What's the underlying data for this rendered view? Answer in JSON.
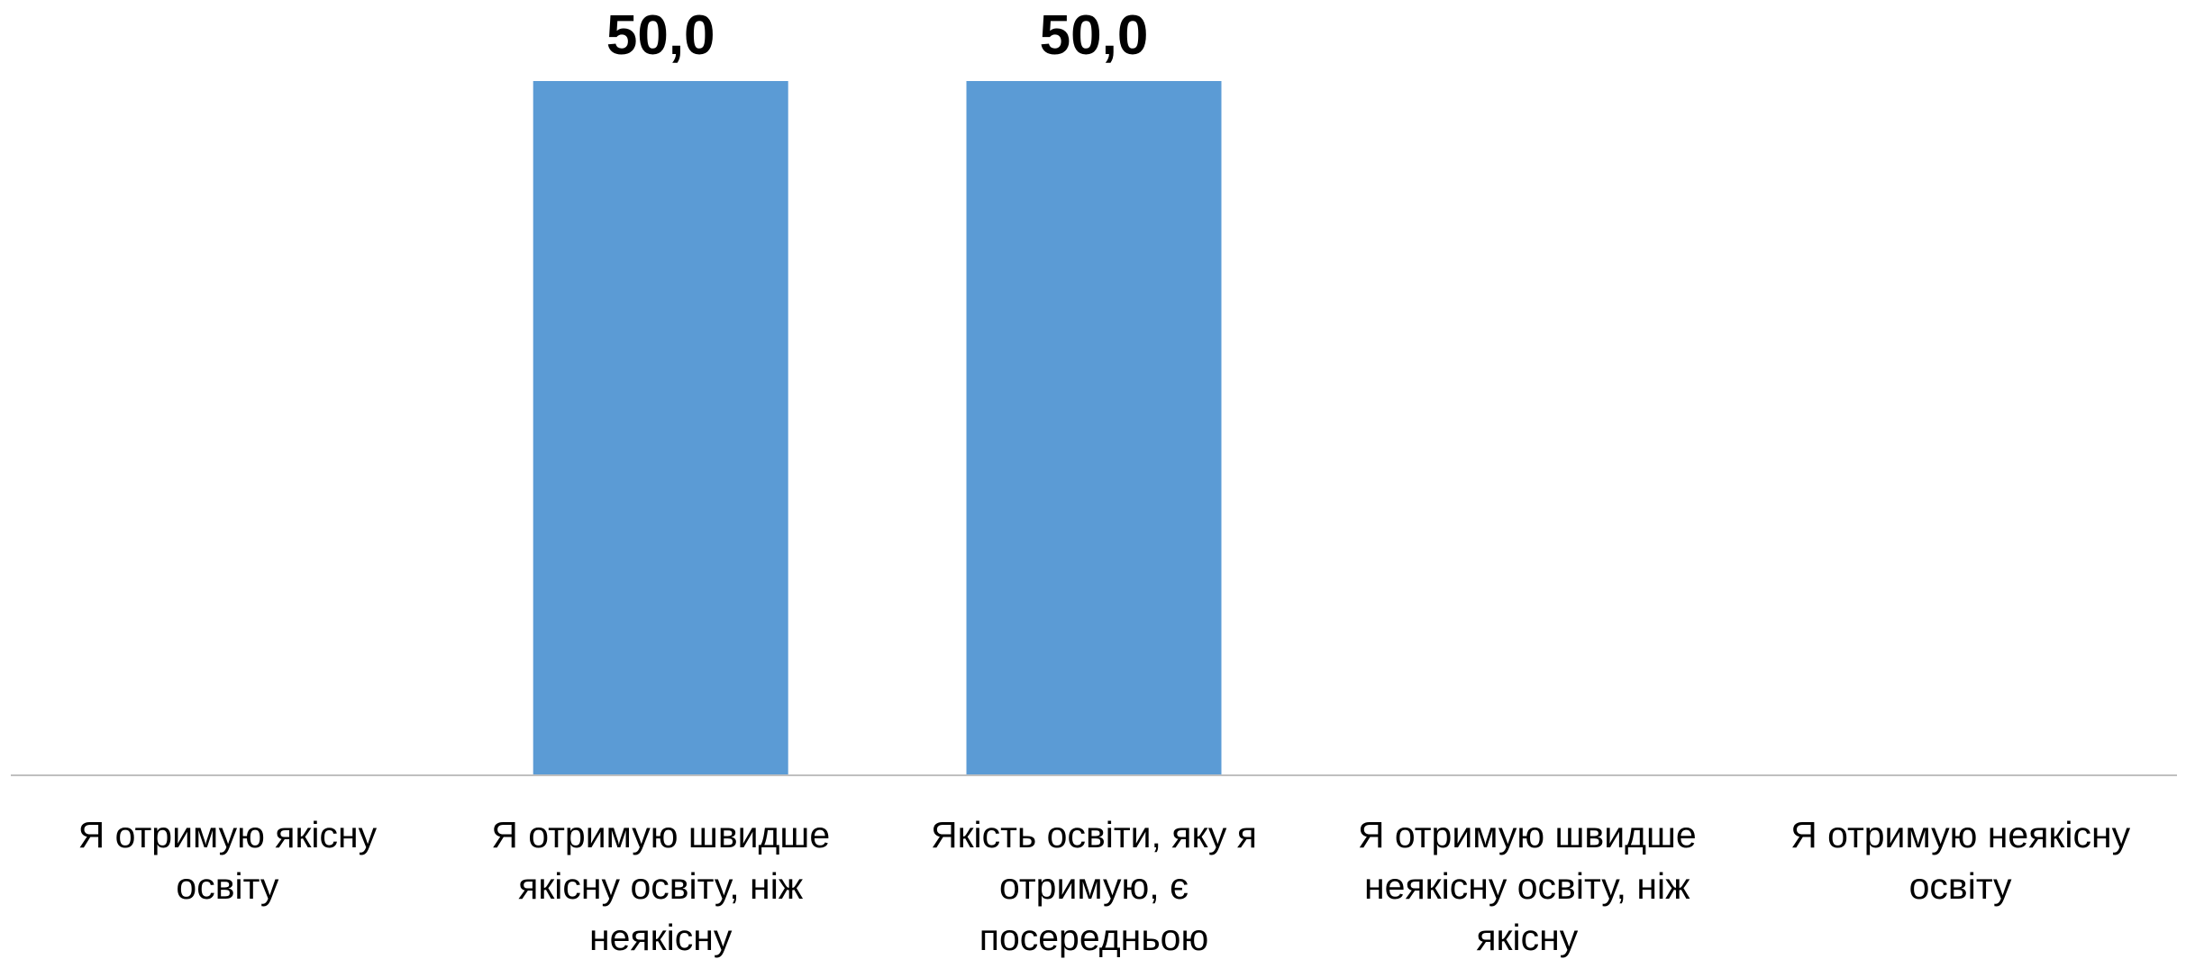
{
  "chart_data": {
    "type": "bar",
    "title": "",
    "xlabel": "",
    "ylabel": "",
    "categories": [
      [
        "Я отримую якісну",
        "освіту"
      ],
      [
        "Я отримую швидше",
        "якісну освіту, ніж",
        "неякісну"
      ],
      [
        "Якість освіти, яку я",
        "отримую, є",
        "посередньою"
      ],
      [
        "Я отримую швидше",
        "неякісну освіту, ніж",
        "якісну"
      ],
      [
        "Я отримую неякісну",
        "освіту"
      ]
    ],
    "values": [
      null,
      50.0,
      50.0,
      null,
      null
    ],
    "value_labels": [
      "",
      "50,0",
      "50,0",
      "",
      ""
    ],
    "ylim": [
      0,
      50
    ],
    "grid": false,
    "legend": "none",
    "colors": {
      "bar": "#5B9BD5",
      "axis": "#BFBFBF",
      "text": "#000000"
    }
  }
}
